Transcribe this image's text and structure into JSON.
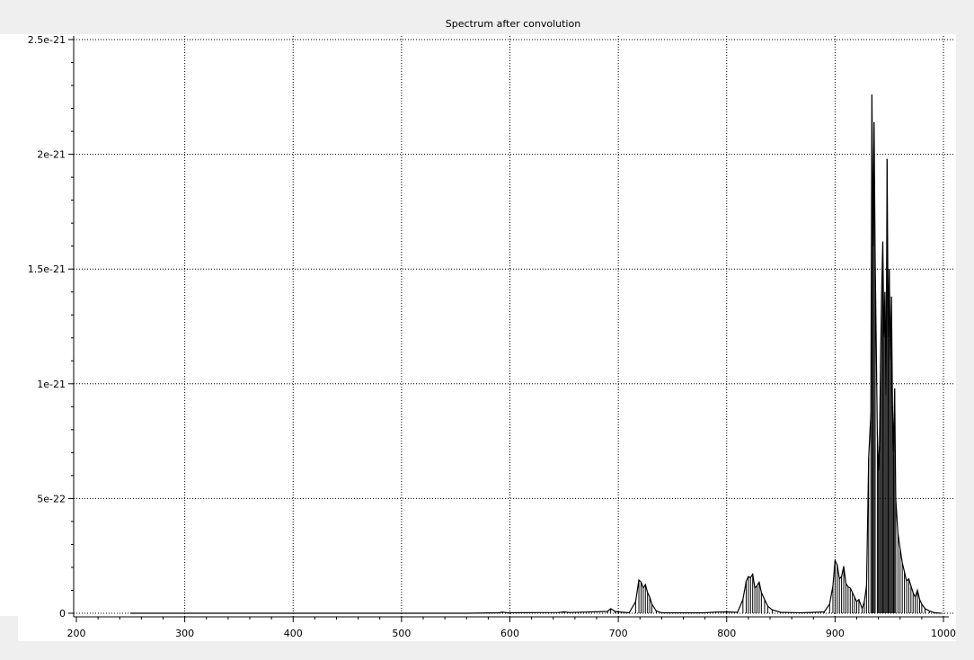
{
  "chart_data": {
    "type": "line",
    "title": "Spectrum after convolution",
    "xlabel": "",
    "ylabel": "",
    "xlim": [
      200,
      1000
    ],
    "ylim": [
      0,
      2.5e-21
    ],
    "grid": true,
    "x_ticks": [
      {
        "value": 200,
        "label": "200"
      },
      {
        "value": 300,
        "label": "300"
      },
      {
        "value": 400,
        "label": "400"
      },
      {
        "value": 500,
        "label": "500"
      },
      {
        "value": 600,
        "label": "600"
      },
      {
        "value": 700,
        "label": "700"
      },
      {
        "value": 800,
        "label": "800"
      },
      {
        "value": 900,
        "label": "900"
      },
      {
        "value": 1000,
        "label": "1000"
      }
    ],
    "y_ticks": [
      {
        "value": 0,
        "label": "0"
      },
      {
        "value": 5e-22,
        "label": "5e-22"
      },
      {
        "value": 1e-21,
        "label": "1e-21"
      },
      {
        "value": 1.5e-21,
        "label": "1.5e-21"
      },
      {
        "value": 2e-21,
        "label": "2e-21"
      },
      {
        "value": 2.5e-21,
        "label": "2.5e-21"
      }
    ],
    "series": [
      {
        "color": "#000000",
        "points": [
          [
            250,
            0
          ],
          [
            560,
            0
          ],
          [
            590,
            2e-24
          ],
          [
            593,
            5e-24
          ],
          [
            597,
            2e-24
          ],
          [
            645,
            3e-24
          ],
          [
            650,
            6e-24
          ],
          [
            655,
            3e-24
          ],
          [
            690,
            8e-24
          ],
          [
            693,
            2e-23
          ],
          [
            697,
            8e-24
          ],
          [
            700,
            6e-24
          ],
          [
            705,
            4e-24
          ],
          [
            710,
            2e-24
          ],
          [
            716,
            5e-23
          ],
          [
            719,
            1.45e-22
          ],
          [
            721,
            1.35e-22
          ],
          [
            723,
            1.1e-22
          ],
          [
            725,
            1.25e-22
          ],
          [
            727,
            9e-23
          ],
          [
            729,
            7e-23
          ],
          [
            731,
            4e-23
          ],
          [
            735,
            1e-23
          ],
          [
            740,
            2e-24
          ],
          [
            780,
            2e-24
          ],
          [
            790,
            5e-24
          ],
          [
            800,
            6e-24
          ],
          [
            810,
            4e-24
          ],
          [
            815,
            6e-23
          ],
          [
            818,
            1.4e-22
          ],
          [
            820,
            1.6e-22
          ],
          [
            822,
            1.55e-22
          ],
          [
            824,
            1.7e-22
          ],
          [
            826,
            1.1e-22
          ],
          [
            828,
            1.2e-22
          ],
          [
            830,
            1.35e-22
          ],
          [
            832,
            9e-23
          ],
          [
            835,
            6e-23
          ],
          [
            838,
            3e-23
          ],
          [
            842,
            1.5e-23
          ],
          [
            850,
            4e-24
          ],
          [
            870,
            2e-24
          ],
          [
            890,
            6e-24
          ],
          [
            895,
            4e-23
          ],
          [
            898,
            1.2e-22
          ],
          [
            900,
            2.3e-22
          ],
          [
            902,
            2.1e-22
          ],
          [
            904,
            1.5e-22
          ],
          [
            906,
            1.6e-22
          ],
          [
            908,
            2.05e-22
          ],
          [
            910,
            1.3e-22
          ],
          [
            912,
            1.15e-22
          ],
          [
            914,
            1.1e-22
          ],
          [
            916,
            9e-23
          ],
          [
            918,
            7e-23
          ],
          [
            920,
            5e-23
          ],
          [
            922,
            6e-23
          ],
          [
            925,
            2e-23
          ],
          [
            927,
            5e-23
          ],
          [
            929,
            1.2e-22
          ],
          [
            931,
            6.8e-22
          ],
          [
            933,
            8.7e-22
          ],
          [
            934,
            2.26e-21
          ],
          [
            935,
            1.6e-21
          ],
          [
            936,
            2.14e-21
          ],
          [
            937,
            1.55e-21
          ],
          [
            939,
            7.9e-22
          ],
          [
            940,
            6.2e-22
          ],
          [
            941,
            7.3e-22
          ],
          [
            942,
            1.1e-21
          ],
          [
            943,
            1.4e-21
          ],
          [
            944,
            1.62e-21
          ],
          [
            945,
            1.2e-21
          ],
          [
            946,
            1.4e-21
          ],
          [
            947,
            9.5e-22
          ],
          [
            948,
            1.98e-21
          ],
          [
            949,
            1.2e-21
          ],
          [
            950,
            1.5e-21
          ],
          [
            951,
            1.1e-21
          ],
          [
            952,
            1.38e-21
          ],
          [
            953,
            9e-22
          ],
          [
            954,
            7e-22
          ],
          [
            955,
            9.8e-22
          ],
          [
            956,
            5e-22
          ],
          [
            958,
            3.5e-22
          ],
          [
            960,
            2.8e-22
          ],
          [
            962,
            2.2e-22
          ],
          [
            964,
            1.8e-22
          ],
          [
            966,
            1.4e-22
          ],
          [
            968,
            1.5e-22
          ],
          [
            970,
            1.2e-22
          ],
          [
            972,
            9e-23
          ],
          [
            974,
            7e-23
          ],
          [
            976,
            1e-22
          ],
          [
            978,
            6e-23
          ],
          [
            980,
            4e-23
          ],
          [
            983,
            2e-23
          ],
          [
            987,
            1e-23
          ],
          [
            992,
            2e-24
          ],
          [
            998,
            0
          ]
        ]
      }
    ]
  }
}
